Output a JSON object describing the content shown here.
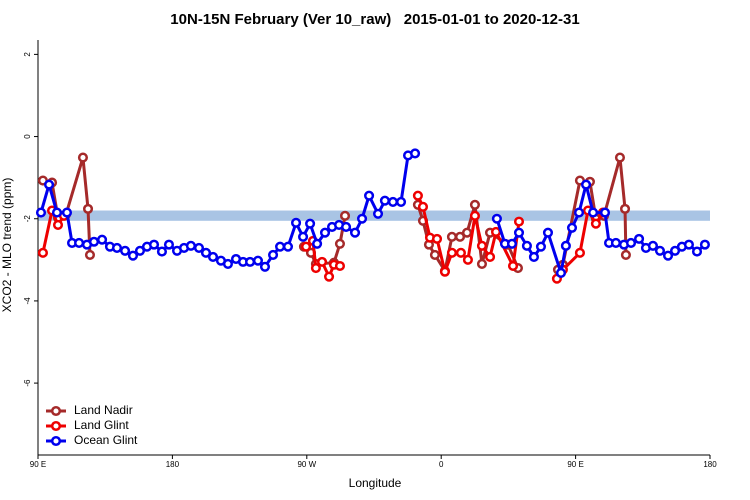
{
  "chart_data": {
    "type": "line",
    "title": "10N-15N February (Ver 10_raw)   2015-01-01 to 2020-12-31",
    "x_label": "Longitude",
    "y_label": "XCO2 - MLO trend (ppm)",
    "xlim": [
      90,
      540
    ],
    "ylim": [
      -7.75,
      2.35
    ],
    "xticks": [
      {
        "value": 90,
        "label": "90 E"
      },
      {
        "value": 180,
        "label": "180"
      },
      {
        "value": 270,
        "label": "90 W"
      },
      {
        "value": 360,
        "label": "0"
      },
      {
        "value": 450,
        "label": "90 E"
      },
      {
        "value": 540,
        "label": "180"
      }
    ],
    "yticks": [
      -6,
      -4,
      -2,
      0,
      2
    ],
    "reference_band": {
      "values": [
        -1.8,
        -2.05
      ],
      "color": "#a9c4e4"
    },
    "legend": "bottom-left",
    "series": [
      {
        "name": "Land Nadir",
        "color": "#a52a2a",
        "x": [
          93.3,
          99.4,
          103.4,
          108.7,
          120.1,
          123.5,
          124.8,
          null,
          268.1,
          272.8,
          276.1,
          288.2,
          292.2,
          295.6,
          null,
          344.4,
          347.8,
          351.8,
          355.8,
          362.5,
          367.2,
          372.6,
          377.3,
          382.6,
          387.3,
          392.7,
          404.7,
          411.4,
          null,
          438.2,
          441.5,
          452.9,
          459.6,
          463.6,
          469.0,
          479.7,
          483.1,
          483.7
        ],
        "values": [
          -1.07,
          -1.12,
          -1.98,
          -1.9,
          -0.51,
          -1.76,
          -2.88,
          null,
          -2.68,
          -2.83,
          -3.1,
          -3.07,
          -2.61,
          -1.93,
          null,
          -1.66,
          -2.05,
          -2.63,
          -2.88,
          -3.27,
          -2.44,
          -2.44,
          -2.34,
          -1.66,
          -3.1,
          -2.34,
          -2.63,
          -3.2,
          null,
          -3.24,
          -3.12,
          -1.07,
          -1.1,
          -2.0,
          -1.93,
          -0.51,
          -1.76,
          -2.88
        ]
      },
      {
        "name": "Land Glint",
        "color": "#ee0000",
        "x": [
          93.3,
          99.4,
          103.4,
          107.4,
          null,
          269.5,
          274.1,
          276.1,
          280.2,
          284.9,
          288.2,
          292.2,
          null,
          344.4,
          347.8,
          352.5,
          357.2,
          362.5,
          367.2,
          373.2,
          377.9,
          382.6,
          387.3,
          392.7,
          396.7,
          408.1,
          412.1,
          null,
          437.5,
          441.5,
          452.9,
          458.3,
          463.6,
          468.3
        ],
        "values": [
          -2.83,
          -1.8,
          -2.15,
          -1.93,
          null,
          -2.68,
          -2.54,
          -3.2,
          -3.05,
          -3.41,
          -3.12,
          -3.15,
          null,
          -1.44,
          -1.71,
          -2.46,
          -2.49,
          -3.29,
          -2.83,
          -2.83,
          -3.0,
          -1.93,
          -2.66,
          -2.93,
          -2.32,
          -3.15,
          -2.07,
          null,
          -3.46,
          -3.24,
          -2.83,
          -1.8,
          -2.12,
          -1.85
        ]
      },
      {
        "name": "Ocean Glint",
        "color": "#0000ee",
        "x": [
          92.0,
          97.4,
          102.7,
          109.4,
          112.8,
          117.5,
          122.8,
          127.5,
          132.9,
          138.2,
          142.9,
          148.3,
          153.6,
          158.3,
          163.0,
          167.7,
          173.0,
          177.7,
          183.1,
          187.8,
          192.4,
          197.8,
          202.5,
          207.2,
          212.5,
          217.2,
          222.6,
          227.3,
          232.0,
          237.3,
          242.0,
          247.4,
          252.1,
          257.4,
          262.8,
          267.5,
          272.2,
          276.9,
          282.2,
          286.9,
          291.6,
          296.3,
          302.3,
          307.0,
          311.7,
          317.7,
          322.3,
          327.7,
          333.1,
          337.8,
          342.5,
          null,
          397.3,
          402.7,
          407.4,
          412.1,
          417.4,
          422.1,
          426.8,
          431.5,
          440.2,
          443.5,
          447.6,
          452.3,
          457.0,
          461.7,
          469.7,
          472.4,
          477.0,
          482.4,
          487.1,
          492.5,
          497.1,
          501.8,
          506.5,
          511.9,
          516.6,
          521.2,
          525.9,
          531.3,
          536.6
        ],
        "values": [
          -1.85,
          -1.17,
          -1.85,
          -1.85,
          -2.59,
          -2.59,
          -2.63,
          -2.56,
          -2.51,
          -2.68,
          -2.71,
          -2.78,
          -2.9,
          -2.78,
          -2.68,
          -2.63,
          -2.8,
          -2.63,
          -2.78,
          -2.71,
          -2.66,
          -2.71,
          -2.83,
          -2.93,
          -3.02,
          -3.1,
          -2.98,
          -3.05,
          -3.05,
          -3.02,
          -3.17,
          -2.88,
          -2.68,
          -2.68,
          -2.1,
          -2.44,
          -2.12,
          -2.61,
          -2.34,
          -2.2,
          -2.15,
          -2.2,
          -2.34,
          -2.0,
          -1.44,
          -1.88,
          -1.56,
          -1.59,
          -1.59,
          -0.46,
          -0.41,
          null,
          -2.0,
          -2.61,
          -2.61,
          -2.34,
          -2.66,
          -2.93,
          -2.68,
          -2.34,
          -3.32,
          -2.66,
          -2.22,
          -1.85,
          -1.17,
          -1.85,
          -1.85,
          -2.59,
          -2.59,
          -2.63,
          -2.59,
          -2.49,
          -2.71,
          -2.66,
          -2.78,
          -2.9,
          -2.78,
          -2.68,
          -2.63,
          -2.8,
          -2.63
        ]
      }
    ]
  }
}
